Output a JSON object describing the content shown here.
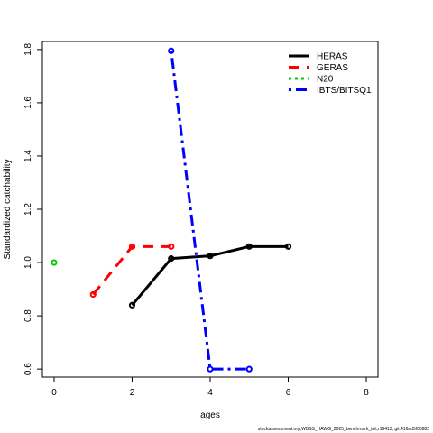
{
  "chart_data": {
    "type": "line",
    "title": "",
    "xlabel": "ages",
    "ylabel": "Standardized catchability",
    "xlim": [
      -0.3,
      8.3
    ],
    "ylim": [
      0.57,
      1.83
    ],
    "xticks": [
      0,
      2,
      4,
      6,
      8
    ],
    "yticks": [
      0.6,
      0.8,
      1.0,
      1.2,
      1.4,
      1.6,
      1.8
    ],
    "xtick_labels": [
      "0",
      "2",
      "4",
      "6",
      "8"
    ],
    "ytick_labels": [
      "0.6",
      "0.8",
      "1.0",
      "1.2",
      "1.4",
      "1.6",
      "1.8"
    ],
    "grid": false,
    "legend_position": "top-right",
    "series": [
      {
        "name": "HERAS",
        "color": "#000000",
        "dash": "solid",
        "x": [
          2,
          3,
          4,
          5,
          6
        ],
        "y": [
          0.84,
          1.015,
          1.025,
          1.06,
          1.06
        ]
      },
      {
        "name": "GERAS",
        "color": "#ff0000",
        "dash": "dashed",
        "x": [
          1,
          2,
          3
        ],
        "y": [
          0.88,
          1.06,
          1.06
        ]
      },
      {
        "name": "N20",
        "color": "#00cd00",
        "dash": "dotted",
        "x": [
          0
        ],
        "y": [
          1.0
        ]
      },
      {
        "name": "IBTS/BITSQ1",
        "color": "#0000ff",
        "dash": "dotdash",
        "x": [
          3,
          4,
          5
        ],
        "y": [
          1.795,
          0.6,
          0.6
        ]
      }
    ]
  },
  "footer": "stockassessment.org,WBSS_HAWG_2025_benchmark_init,r19413, git:416ad5f00882"
}
